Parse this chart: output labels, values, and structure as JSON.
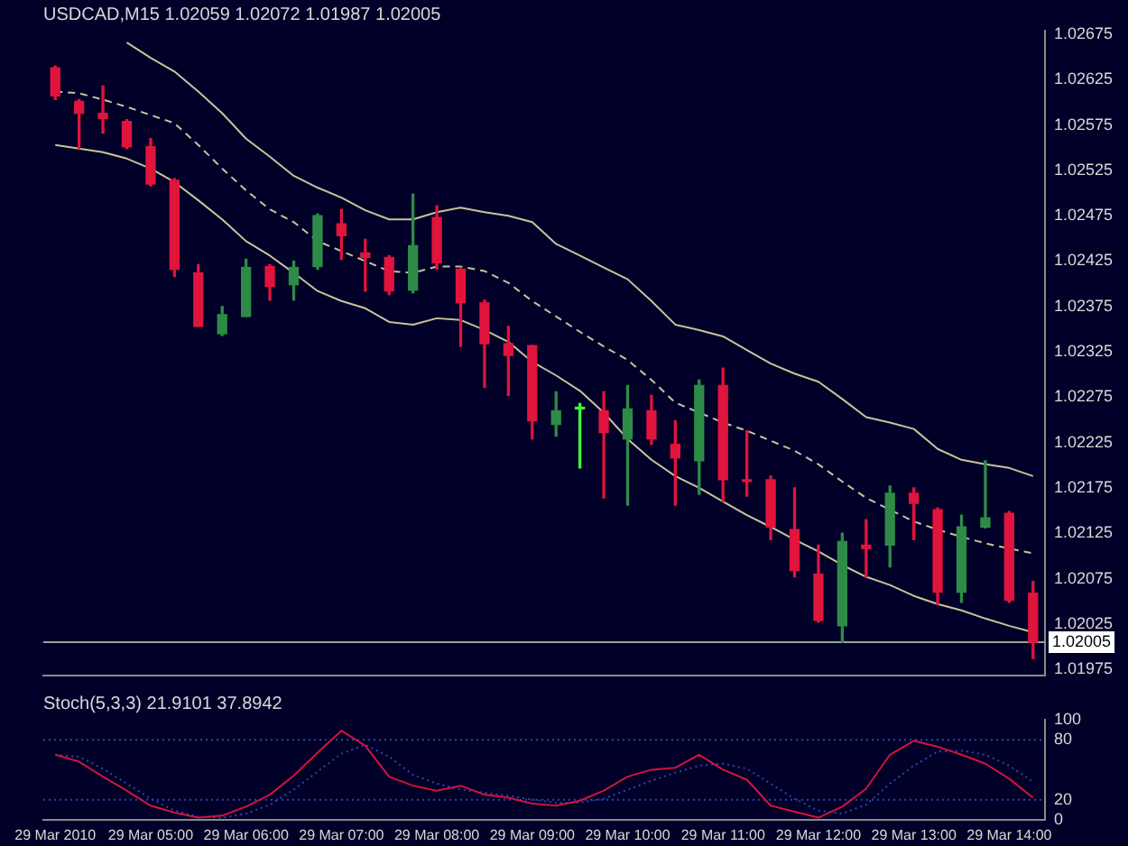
{
  "chart_data": [
    {
      "type": "candlestick",
      "title": "USDCAD,M15 1.02059 1.02072 1.01987 1.02005",
      "categories": [
        null,
        null,
        null,
        null,
        null,
        null,
        null,
        null,
        null,
        null,
        null,
        null,
        null,
        null,
        null,
        null,
        null,
        null,
        null,
        null,
        null,
        null,
        null,
        null,
        null,
        null,
        null,
        null,
        null,
        null,
        null,
        null,
        null,
        null,
        null,
        null,
        null,
        null,
        null,
        null,
        null,
        null
      ],
      "ohlc": [
        [
          1.02638,
          1.0264,
          1.02603,
          1.02607
        ],
        [
          1.02601,
          1.02603,
          1.02549,
          1.02588
        ],
        [
          1.02588,
          1.02618,
          1.02566,
          1.02582
        ],
        [
          1.02579,
          1.02581,
          1.02549,
          1.02551
        ],
        [
          1.02551,
          1.0256,
          1.02508,
          1.0251
        ],
        [
          1.02514,
          1.02516,
          1.02408,
          1.02416
        ],
        [
          1.02412,
          1.02421,
          1.02353,
          1.02353
        ],
        [
          1.02345,
          1.02375,
          1.02343,
          1.02366
        ],
        [
          1.02364,
          1.02427,
          1.02364,
          1.02418
        ],
        [
          1.02419,
          1.02421,
          1.02382,
          1.02397
        ],
        [
          1.02399,
          1.02425,
          1.02382,
          1.02418
        ],
        [
          1.02419,
          1.02477,
          1.02416,
          1.02475
        ],
        [
          1.02466,
          1.02482,
          1.02427,
          1.02453
        ],
        [
          1.02434,
          1.02449,
          1.02392,
          1.02429
        ],
        [
          1.02429,
          1.02431,
          1.02388,
          1.02392
        ],
        [
          1.02393,
          1.02499,
          1.0239,
          1.02442
        ],
        [
          1.02473,
          1.02486,
          1.02416,
          1.02423
        ],
        [
          1.02416,
          1.02418,
          1.02331,
          1.02379
        ],
        [
          1.02379,
          1.02382,
          1.02286,
          1.02334
        ],
        [
          1.02334,
          1.02353,
          1.02277,
          1.02321
        ],
        [
          1.02332,
          1.02332,
          1.02229,
          1.02249
        ],
        [
          1.02245,
          1.02281,
          1.02232,
          1.0226
        ],
        [
          1.02262,
          1.02268,
          1.02197,
          1.02262
        ],
        [
          1.0226,
          1.02281,
          1.02164,
          1.02236
        ],
        [
          1.02229,
          1.02288,
          1.02156,
          1.02262
        ],
        [
          1.0226,
          1.02277,
          1.02223,
          1.02229
        ],
        [
          1.02223,
          1.02249,
          1.02156,
          1.02208
        ],
        [
          1.02205,
          1.02294,
          1.02168,
          1.02288
        ],
        [
          1.02288,
          1.02307,
          1.0216,
          1.02184
        ],
        [
          1.02184,
          1.02238,
          1.02166,
          1.02182
        ],
        [
          1.02184,
          1.02188,
          1.02118,
          1.02132
        ],
        [
          1.02129,
          1.02175,
          1.02077,
          1.02084
        ],
        [
          1.0208,
          1.02112,
          1.02027,
          1.02029
        ],
        [
          1.02023,
          1.02125,
          1.02005,
          1.02116
        ],
        [
          1.02112,
          1.0214,
          1.02077,
          1.02108
        ],
        [
          1.02112,
          1.02177,
          1.02088,
          1.02169
        ],
        [
          1.02169,
          1.02175,
          1.02118,
          1.02158
        ],
        [
          1.02151,
          1.02153,
          1.02047,
          1.0206
        ],
        [
          1.0206,
          1.02145,
          1.02049,
          1.02132
        ],
        [
          1.02132,
          1.02205,
          1.02131,
          1.02142
        ],
        [
          1.02147,
          1.02149,
          1.02049,
          1.02051
        ],
        [
          1.02059,
          1.02072,
          1.01987,
          1.02005
        ]
      ],
      "colors": [
        "#e0143c",
        "#e0143c",
        "#e0143c",
        "#e0143c",
        "#e0143c",
        "#e0143c",
        "#e0143c",
        "#2e8b47",
        "#2e8b47",
        "#e0143c",
        "#2e8b47",
        "#2e8b47",
        "#e0143c",
        "#e0143c",
        "#e0143c",
        "#2e8b47",
        "#e0143c",
        "#e0143c",
        "#e0143c",
        "#e0143c",
        "#e0143c",
        "#2e8b47",
        "#3cff3c",
        "#e0143c",
        "#2e8b47",
        "#e0143c",
        "#e0143c",
        "#2e8b47",
        "#e0143c",
        "#e0143c",
        "#e0143c",
        "#e0143c",
        "#e0143c",
        "#2e8b47",
        "#e0143c",
        "#2e8b47",
        "#e0143c",
        "#e0143c",
        "#2e8b47",
        "#2e8b47",
        "#e0143c",
        "#e0143c"
      ],
      "series": [
        {
          "type": "line",
          "color": "#c8c39a",
          "line_style": "solid",
          "values": [
            null,
            null,
            null,
            1.02666,
            1.02649,
            1.02634,
            1.02612,
            1.02588,
            1.0256,
            1.0254,
            1.02519,
            1.02506,
            1.02495,
            1.02481,
            1.02471,
            1.02471,
            1.02479,
            1.02484,
            1.02479,
            1.02475,
            1.02468,
            1.02444,
            1.02431,
            1.02418,
            1.02405,
            1.02381,
            1.02355,
            1.02349,
            1.02342,
            1.02327,
            1.02312,
            1.02301,
            1.02292,
            1.02273,
            1.02253,
            1.02247,
            1.0224,
            1.02218,
            1.02206,
            1.02201,
            1.02197,
            1.02188
          ]
        },
        {
          "type": "line",
          "color": "#c8c39a",
          "line_style": "dashed",
          "values": [
            1.02612,
            1.0261,
            1.02603,
            1.02595,
            1.02586,
            1.02577,
            1.02553,
            1.02527,
            1.02503,
            1.02482,
            1.02468,
            1.02447,
            1.02436,
            1.02425,
            1.02414,
            1.02412,
            1.02419,
            1.02419,
            1.02414,
            1.02401,
            1.02381,
            1.02364,
            1.02347,
            1.02331,
            1.02316,
            1.02294,
            1.02269,
            1.02258,
            1.02247,
            1.02238,
            1.02227,
            1.02216,
            1.02201,
            1.02182,
            1.02164,
            1.02151,
            1.02138,
            1.02129,
            1.02121,
            1.02114,
            1.02108,
            1.02103
          ]
        },
        {
          "type": "line",
          "color": "#c8c39a",
          "line_style": "solid",
          "values": [
            1.02553,
            1.02549,
            1.02545,
            1.02538,
            1.02527,
            1.02512,
            1.02492,
            1.02471,
            1.02447,
            1.02431,
            1.02412,
            1.02392,
            1.02381,
            1.02373,
            1.02358,
            1.02355,
            1.02362,
            1.0236,
            1.02349,
            1.02336,
            1.02314,
            1.02299,
            1.02282,
            1.02258,
            1.02229,
            1.02206,
            1.02188,
            1.02175,
            1.0216,
            1.02145,
            1.02132,
            1.02118,
            1.02105,
            1.0209,
            1.02077,
            1.02068,
            1.02056,
            1.02047,
            1.0204,
            1.02031,
            1.02023,
            1.02016
          ]
        }
      ],
      "ylim": [
        1.01968,
        1.02679
      ],
      "yticks": [
        1.01975,
        1.02025,
        1.02075,
        1.02125,
        1.02175,
        1.02225,
        1.02275,
        1.02325,
        1.02375,
        1.02425,
        1.02475,
        1.02525,
        1.02575,
        1.02625,
        1.02675
      ],
      "ref_lines": [
        {
          "axis": "y",
          "value": 1.02005,
          "label": "1.02005",
          "color": "#a0a0a0",
          "line_style": "solid"
        }
      ],
      "tick_labels": "y",
      "grid": false,
      "legend": false,
      "marker": "none"
    },
    {
      "type": "line",
      "title": "Stoch(5,3,3) 21.9101 37.8942",
      "categories": [
        "29 Mar 2010",
        null,
        null,
        null,
        "29 Mar 05:00",
        null,
        null,
        null,
        "29 Mar 06:00",
        null,
        null,
        null,
        "29 Mar 07:00",
        null,
        null,
        null,
        "29 Mar 08:00",
        null,
        null,
        null,
        "29 Mar 09:00",
        null,
        null,
        null,
        "29 Mar 10:00",
        null,
        null,
        null,
        "29 Mar 11:00",
        null,
        null,
        null,
        "29 Mar 12:00",
        null,
        null,
        null,
        "29 Mar 13:00",
        null,
        null,
        null,
        "29 Mar 14:00",
        null
      ],
      "series": [
        {
          "color": "#d0143c",
          "line_style": "solid",
          "values": [
            65,
            58,
            43,
            29,
            14,
            7,
            2,
            4,
            13,
            25,
            44,
            67,
            89,
            74,
            43,
            34,
            29,
            34,
            25,
            22,
            16,
            14,
            19,
            29,
            43,
            50,
            52,
            65,
            50,
            40,
            14,
            8,
            2,
            13,
            31,
            65,
            79,
            73,
            65,
            56,
            41,
            22
          ]
        },
        {
          "color": "#2a48b0",
          "line_style": "dotted",
          "values": [
            65,
            63,
            51,
            36,
            21,
            9,
            3,
            2,
            6,
            15,
            30,
            48,
            66,
            75,
            63,
            45,
            36,
            30,
            27,
            24,
            20,
            17,
            17,
            21,
            30,
            39,
            47,
            54,
            56,
            51,
            36,
            21,
            9,
            6,
            15,
            36,
            54,
            68,
            69,
            65,
            54,
            38
          ]
        }
      ],
      "ylim": [
        0,
        100
      ],
      "yticks": [
        0,
        20,
        80,
        100
      ],
      "ref_lines": [
        {
          "axis": "y",
          "value": 20,
          "color": "#2a48b0",
          "line_style": "dotted"
        },
        {
          "axis": "y",
          "value": 80,
          "color": "#2a48b0",
          "line_style": "dotted"
        }
      ],
      "grid": false,
      "legend": false,
      "marker": "none"
    }
  ]
}
